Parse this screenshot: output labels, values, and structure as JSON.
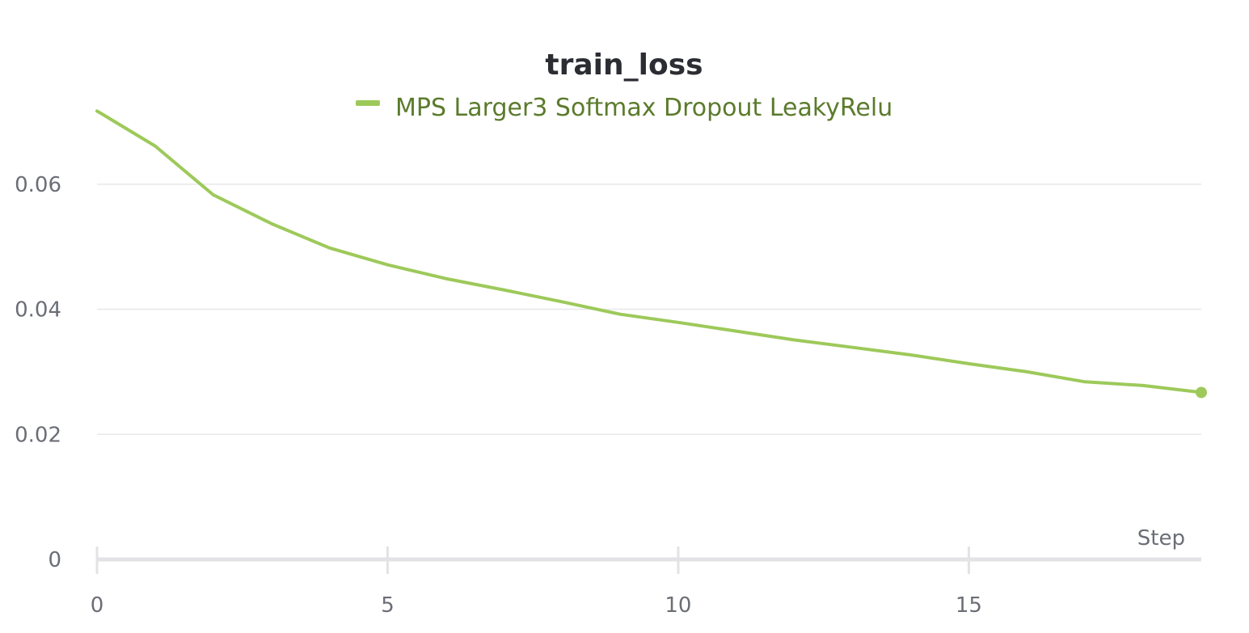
{
  "chart_data": {
    "type": "line",
    "title": "train_loss",
    "xlabel": "Step",
    "ylabel": "",
    "xlim": [
      0,
      19
    ],
    "ylim": [
      0,
      0.072
    ],
    "x_ticks": [
      0,
      5,
      10,
      15
    ],
    "x_tick_labels": [
      "0",
      "5",
      "10",
      "15"
    ],
    "y_ticks": [
      0,
      0.02,
      0.04,
      0.06
    ],
    "y_tick_labels": [
      "0",
      "0.02",
      "0.04",
      "0.06"
    ],
    "grid": true,
    "legend_position": "top-center",
    "series": [
      {
        "name": "MPS Larger3 Softmax Dropout LeakyRelu",
        "color": "#9dc95a",
        "label_color": "#5b7b2c",
        "x": [
          0,
          1,
          2,
          3,
          4,
          5,
          6,
          7,
          8,
          9,
          10,
          11,
          12,
          13,
          14,
          15,
          16,
          17,
          18,
          19
        ],
        "y": [
          0.0717,
          0.0661,
          0.0583,
          0.0537,
          0.0498,
          0.0471,
          0.0449,
          0.0431,
          0.0412,
          0.0392,
          0.0379,
          0.0365,
          0.0351,
          0.0339,
          0.0327,
          0.0313,
          0.03,
          0.0284,
          0.0278,
          0.0267
        ]
      }
    ]
  }
}
